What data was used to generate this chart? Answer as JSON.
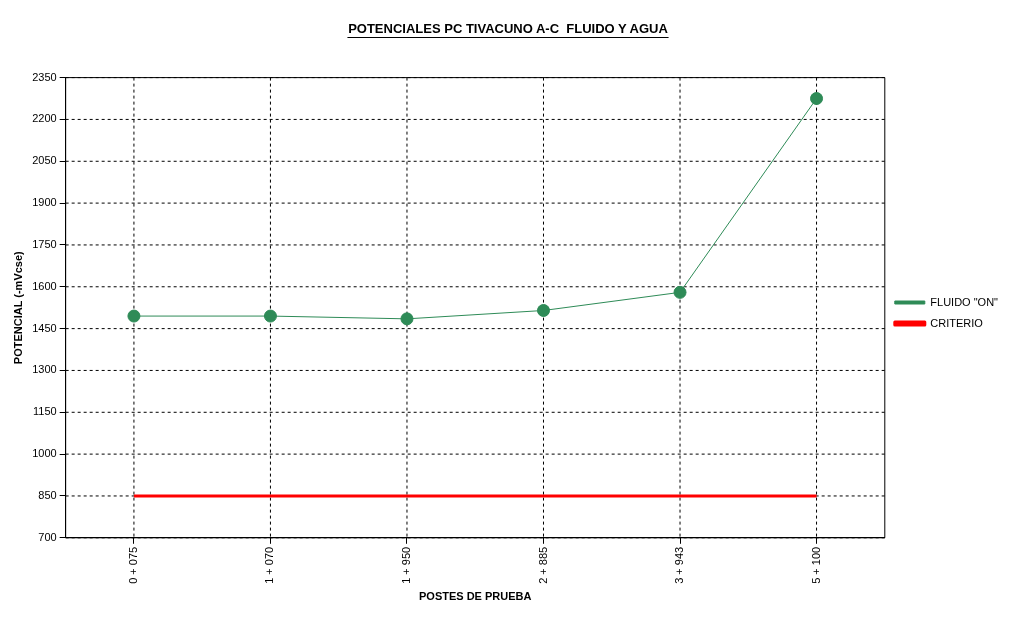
{
  "chart_data": {
    "type": "line",
    "title": "POTENCIALES PC TIVACUNO A-C  FLUIDO Y AGUA",
    "xlabel": "POSTES DE PRUEBA",
    "ylabel": "POTENCIAL (-mVcse)",
    "categories": [
      "0 + 075",
      "1 + 070",
      "1 + 950",
      "2 + 885",
      "3 + 943",
      "5 + 100"
    ],
    "series": [
      {
        "name": "FLUIDO \"ON\"",
        "color": "#2e8b57",
        "values": [
          1495,
          1495,
          1485,
          1515,
          1580,
          2275
        ],
        "marker": "circle"
      },
      {
        "name": "CRITERIO",
        "color": "#ff0000",
        "values": [
          850,
          850,
          850,
          850,
          850,
          850
        ],
        "marker": "none"
      }
    ],
    "ylim": [
      700,
      2350
    ],
    "yticks": [
      700,
      850,
      1000,
      1150,
      1300,
      1450,
      1600,
      1750,
      1900,
      2050,
      2200,
      2350
    ],
    "grid": true,
    "legend": "right"
  }
}
